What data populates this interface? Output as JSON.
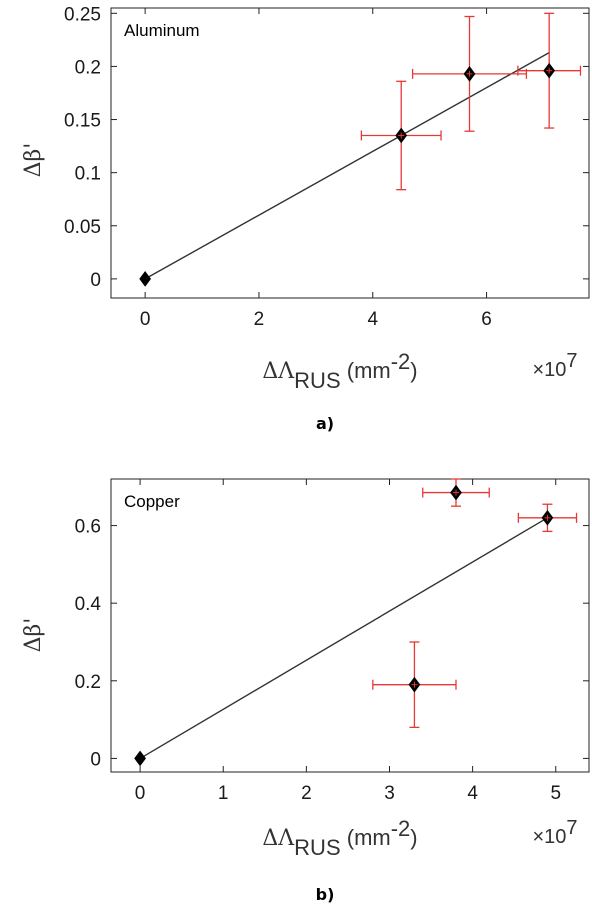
{
  "chart_data": [
    {
      "type": "scatter",
      "panel_label": "a)",
      "inset_label": "Aluminum",
      "ylabel": "Δβ'",
      "xlabel": {
        "symbol": "ΔΛ",
        "subscript": "RUS",
        "unit": "(mm",
        "exponent": "-2",
        "close": ")"
      },
      "multiplier": {
        "prefix": "×10",
        "exponent": "7"
      },
      "xlim": [
        -0.6,
        7.8
      ],
      "ylim": [
        -0.018,
        0.255
      ],
      "xticks": [
        0,
        2,
        4,
        6
      ],
      "yticks": [
        0,
        0.05,
        0.1,
        0.15,
        0.2,
        0.25
      ],
      "ytick_labels": [
        "0",
        "0.05",
        "0.1",
        "0.15",
        "0.2",
        "0.25"
      ],
      "points": [
        {
          "x": 0.0,
          "y": 0.0
        },
        {
          "x": 4.5,
          "y": 0.135,
          "xerr": 0.7,
          "yerr": 0.051
        },
        {
          "x": 5.7,
          "y": 0.193,
          "xerr": 1.0,
          "yerr": 0.054
        },
        {
          "x": 7.1,
          "y": 0.196,
          "xerr": 0.55,
          "yerr": 0.054
        }
      ],
      "fit_line": {
        "x": [
          0,
          7.1
        ],
        "y": [
          0,
          0.213
        ]
      },
      "colors": {
        "errorbar": "#e53935",
        "marker": "#000000",
        "line": "#333333"
      }
    },
    {
      "type": "scatter",
      "panel_label": "b)",
      "inset_label": "Copper",
      "ylabel": "Δβ'",
      "xlabel": {
        "symbol": "ΔΛ",
        "subscript": "RUS",
        "unit": "(mm",
        "exponent": "-2",
        "close": ")"
      },
      "multiplier": {
        "prefix": "×10",
        "exponent": "7"
      },
      "xlim": [
        -0.35,
        5.4
      ],
      "ylim": [
        -0.035,
        0.72
      ],
      "xticks": [
        0,
        1,
        2,
        3,
        4,
        5
      ],
      "yticks": [
        0,
        0.2,
        0.4,
        0.6
      ],
      "ytick_labels": [
        "0",
        "0.2",
        "0.4",
        "0.6"
      ],
      "points": [
        {
          "x": 0.0,
          "y": 0.0
        },
        {
          "x": 3.3,
          "y": 0.19,
          "xerr": 0.5,
          "yerr": 0.11
        },
        {
          "x": 3.8,
          "y": 0.685,
          "xerr": 0.4,
          "yerr": 0.035
        },
        {
          "x": 4.9,
          "y": 0.62,
          "xerr": 0.35,
          "yerr": 0.035
        }
      ],
      "fit_line": {
        "x": [
          0,
          4.9
        ],
        "y": [
          0,
          0.62
        ]
      },
      "colors": {
        "errorbar": "#e53935",
        "marker": "#000000",
        "line": "#333333"
      }
    }
  ]
}
